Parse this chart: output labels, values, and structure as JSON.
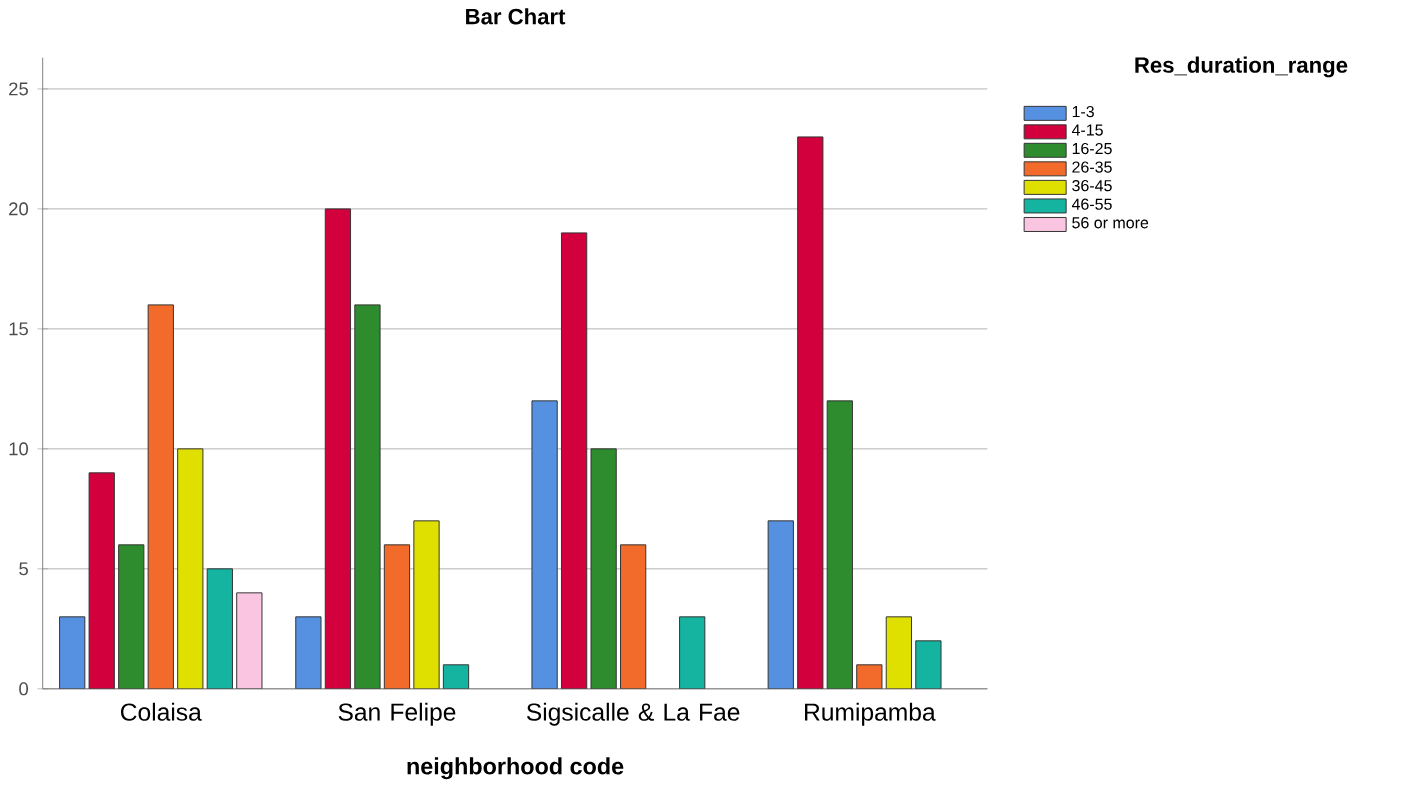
{
  "chart_data": {
    "type": "bar",
    "title": "Bar Chart",
    "xlabel": "neighborhood code",
    "legend_title": "Res_duration_range",
    "categories": [
      "Colaisa",
      "San Felipe",
      "Sigsicalle & La Fae",
      "Rumipamba"
    ],
    "series": [
      {
        "name": "1-3",
        "color": "#5591e0",
        "values": [
          3,
          3,
          12,
          7
        ]
      },
      {
        "name": "4-15",
        "color": "#d2003c",
        "values": [
          9,
          20,
          19,
          23
        ]
      },
      {
        "name": "16-25",
        "color": "#2e8b2e",
        "values": [
          6,
          16,
          10,
          12
        ]
      },
      {
        "name": "26-35",
        "color": "#f26b2a",
        "values": [
          16,
          6,
          6,
          1
        ]
      },
      {
        "name": "36-45",
        "color": "#e0e000",
        "values": [
          10,
          7,
          null,
          3
        ]
      },
      {
        "name": "46-55",
        "color": "#14b4a0",
        "values": [
          5,
          1,
          3,
          2
        ]
      },
      {
        "name": "56 or more",
        "color": "#f9c5e0",
        "values": [
          4,
          null,
          null,
          null
        ]
      }
    ],
    "ylim": [
      0,
      26.3
    ],
    "yticks": [
      0,
      5,
      10,
      15,
      20,
      25
    ],
    "grid": "y",
    "legend": "top right"
  }
}
